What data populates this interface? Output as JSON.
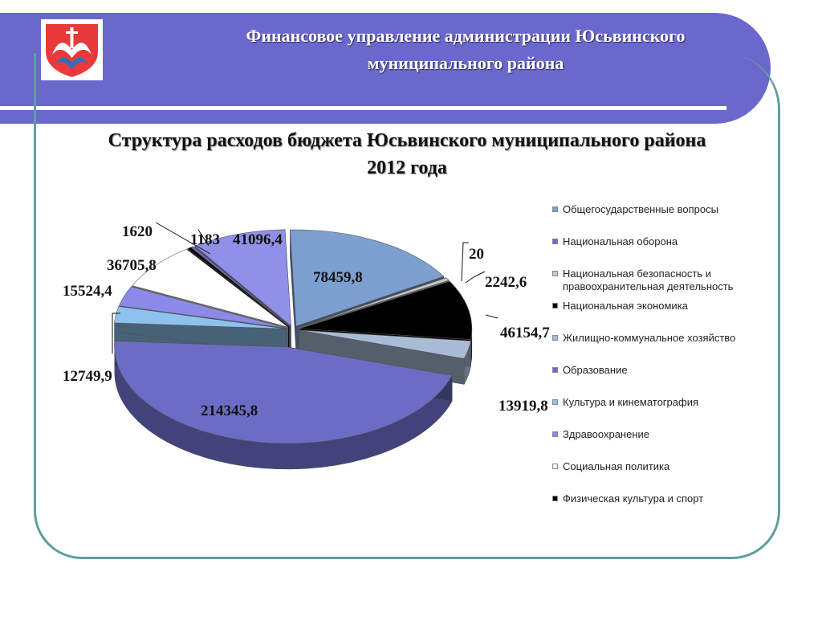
{
  "header": {
    "org_line1": "Финансовое управление администрации Юсьвинского",
    "org_line2": "муниципального района",
    "logo_icon": "coat-of-arms-icon"
  },
  "slide": {
    "title_line1": "Структура расходов бюджета Юсьвинского муниципального района",
    "title_line2": "2012 года"
  },
  "colors": {
    "header_bg": "#6a68cc",
    "frame": "#5f9f9c"
  },
  "chart_data": {
    "type": "pie",
    "title": "",
    "legend_position": "right",
    "series": [
      {
        "label": "Общегосударственные вопросы",
        "value": "78459,8",
        "color": "#7c9fcf"
      },
      {
        "label": "Национальная оборона",
        "value": "20",
        "color": "#6a68c8"
      },
      {
        "label": "Национальная безопасность и правоохранительная деятельность",
        "value": "2242,6",
        "color": "#c8c8c8"
      },
      {
        "label": "Национальная экономика",
        "value": "46154,7",
        "color": "#000000"
      },
      {
        "label": "Жилищно-коммунальное хозяйство",
        "value": "13919,8",
        "color": "#a9bcd6"
      },
      {
        "label": "Образование",
        "value": "214345,8",
        "color": "#6c6cc6"
      },
      {
        "label": "Культура и кинематография",
        "value": "12749,9",
        "color": "#8ec2ee"
      },
      {
        "label": "Здравоохранение",
        "value": "15524,4",
        "color": "#8c8ae8"
      },
      {
        "label": "Социальная политика",
        "value": "36705,8",
        "color": "#ffffff"
      },
      {
        "label": "Физическая культура и спорт",
        "value": "1620",
        "color": "#000000"
      },
      {
        "label": "",
        "value": "1183",
        "color": "#6c6cc6"
      },
      {
        "label": "",
        "value": "41096,4",
        "color": "#9090e8"
      }
    ]
  }
}
